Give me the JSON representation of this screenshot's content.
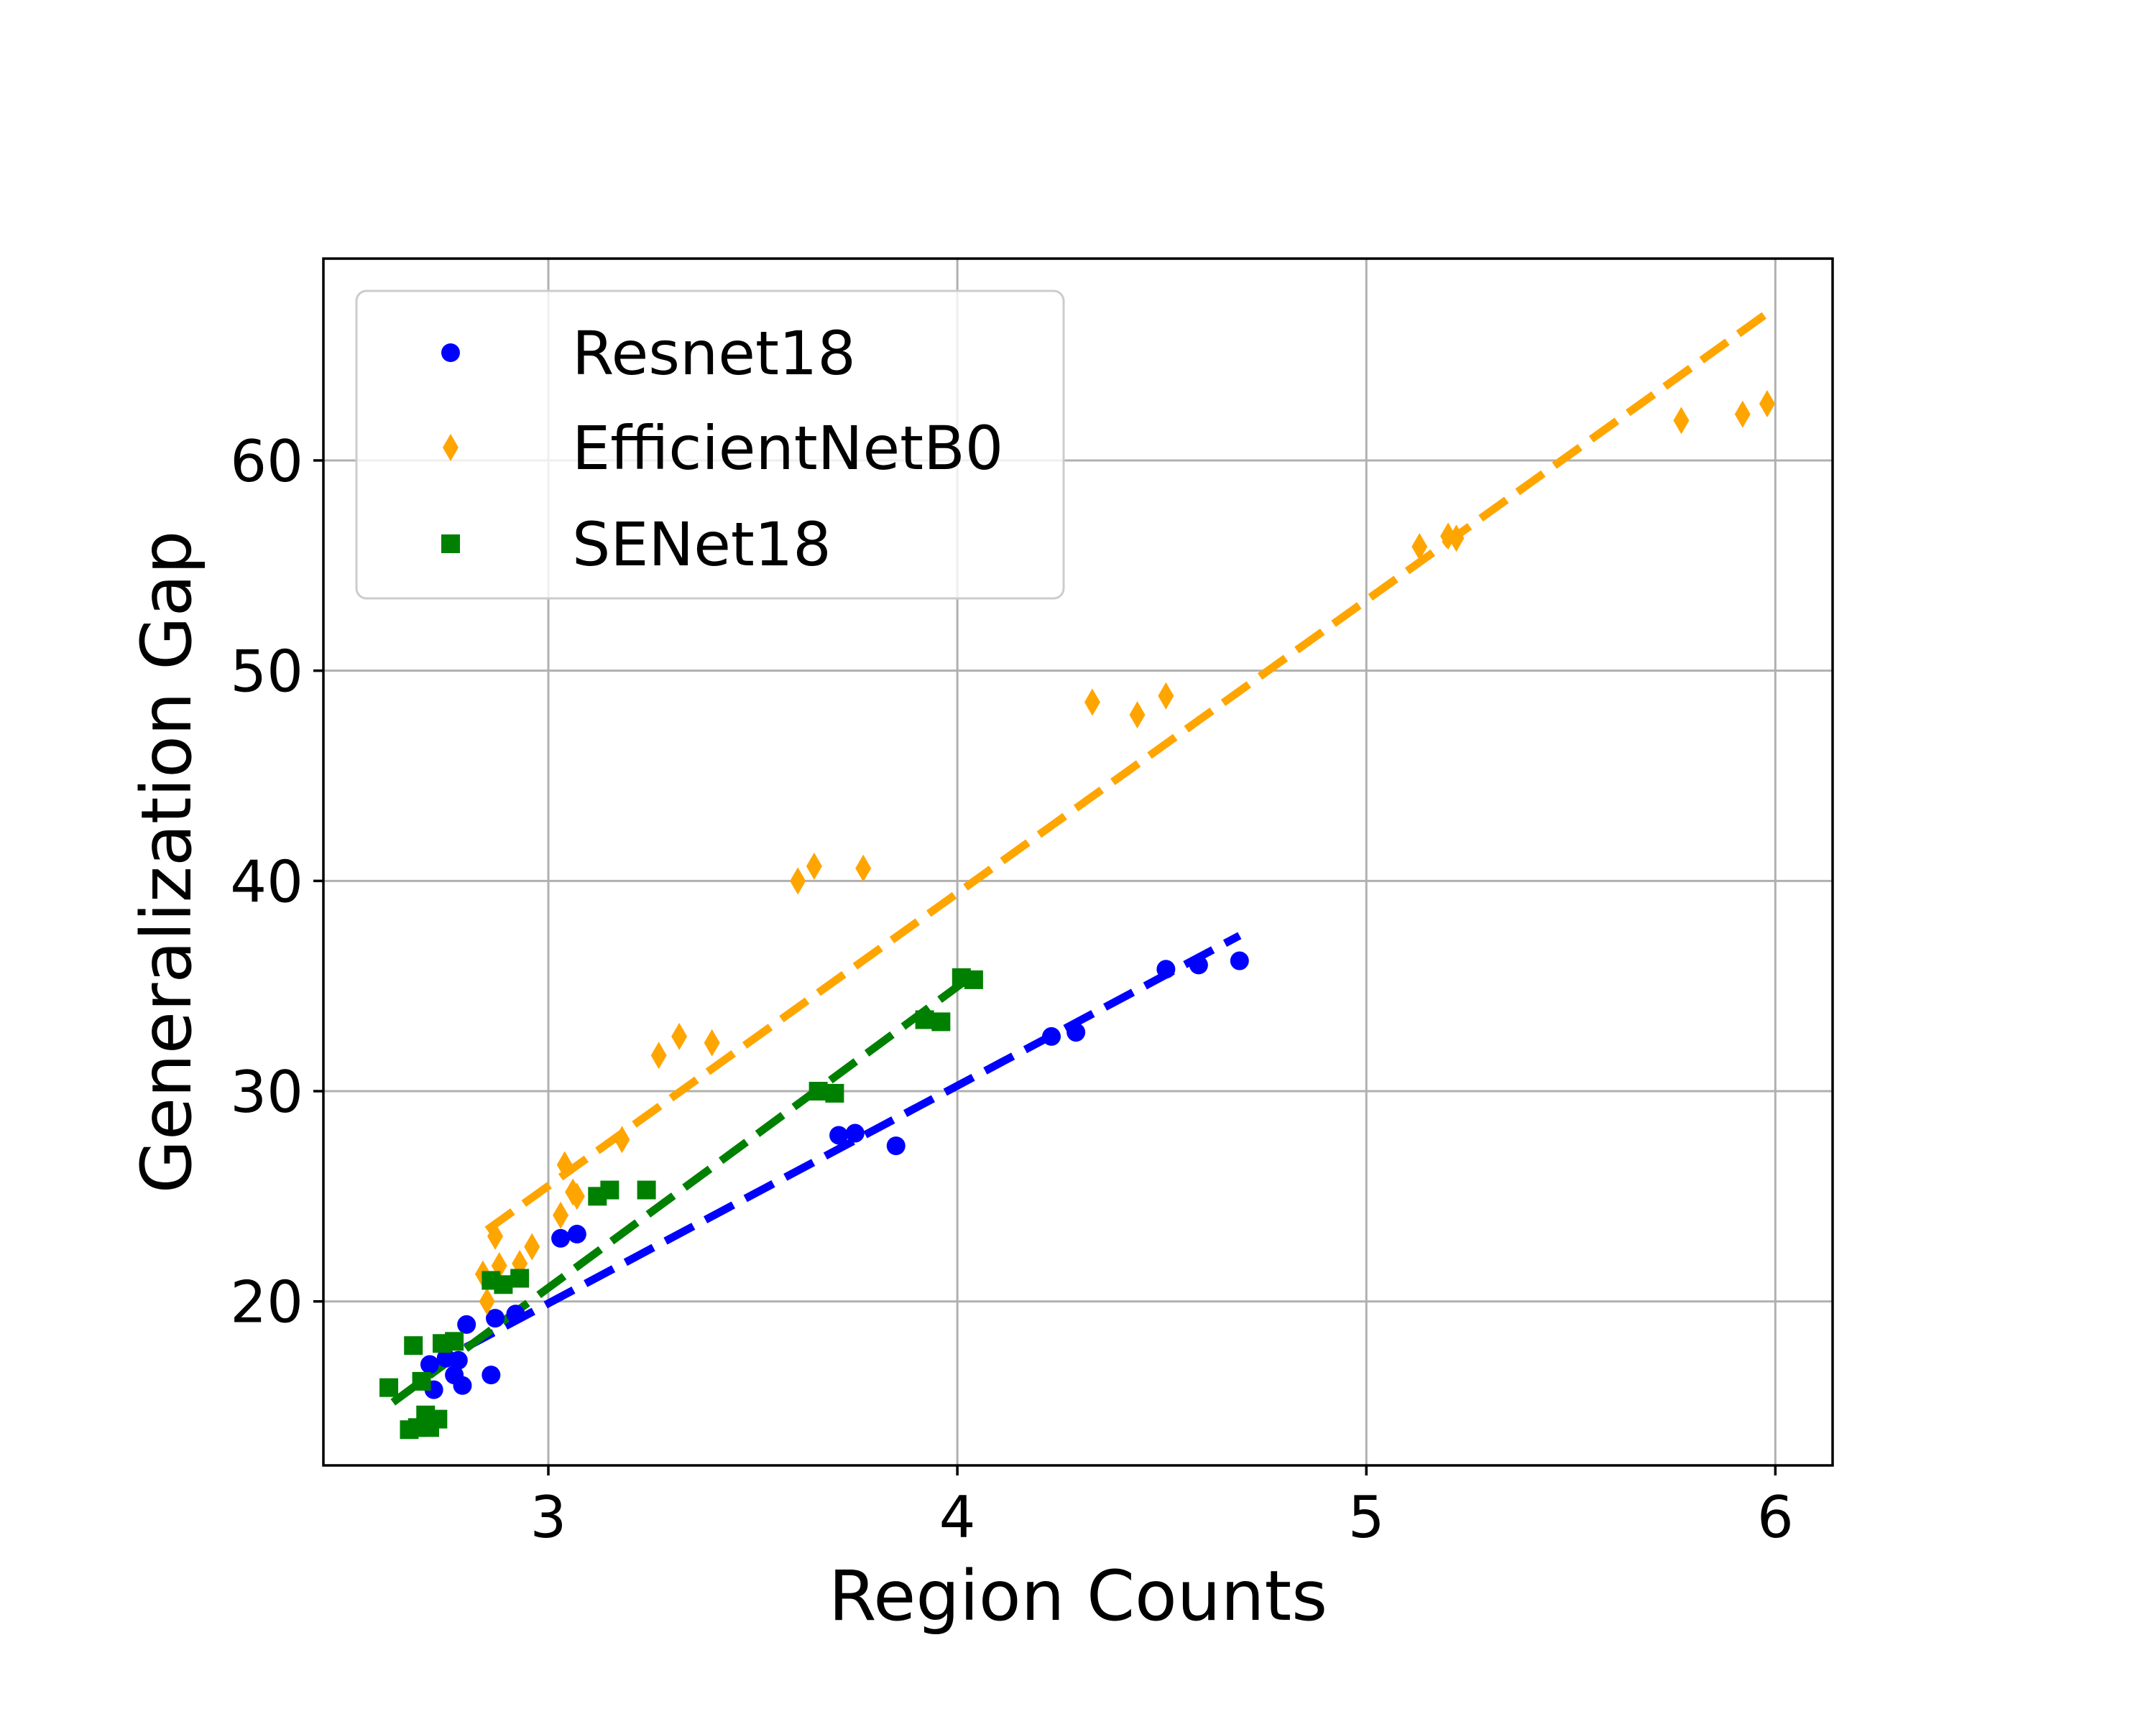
{
  "chart_data": {
    "type": "scatter",
    "xlabel": "Region Counts",
    "ylabel": "Generalization Gap",
    "xlim": [
      2.45,
      6.14
    ],
    "ylim": [
      12.2,
      69.6
    ],
    "xticks": [
      3,
      4,
      5,
      6
    ],
    "yticks": [
      20,
      30,
      40,
      50,
      60
    ],
    "grid": true,
    "legend_position": "top-left",
    "series": [
      {
        "name": "Resnet18",
        "marker": "circle",
        "color": "#0000ff",
        "points": [
          [
            2.71,
            17.0
          ],
          [
            2.72,
            15.8
          ],
          [
            2.75,
            17.3
          ],
          [
            2.77,
            16.5
          ],
          [
            2.78,
            17.2
          ],
          [
            2.79,
            16.0
          ],
          [
            2.8,
            18.9
          ],
          [
            2.86,
            16.5
          ],
          [
            2.87,
            19.2
          ],
          [
            2.92,
            19.4
          ],
          [
            3.03,
            23.0
          ],
          [
            3.07,
            23.2
          ],
          [
            3.71,
            27.9
          ],
          [
            3.75,
            28.0
          ],
          [
            3.85,
            27.4
          ],
          [
            4.23,
            32.6
          ],
          [
            4.29,
            32.8
          ],
          [
            4.51,
            35.8
          ],
          [
            4.59,
            36.0
          ],
          [
            4.69,
            36.2
          ]
        ],
        "trend": {
          "x": [
            2.7,
            4.69
          ],
          "y": [
            16.8,
            37.4
          ]
        }
      },
      {
        "name": "EfficientNetB0",
        "marker": "thin_diamond",
        "color": "#ffa500",
        "points": [
          [
            2.84,
            21.3
          ],
          [
            2.85,
            20.0
          ],
          [
            2.87,
            23.1
          ],
          [
            2.88,
            21.7
          ],
          [
            2.93,
            21.8
          ],
          [
            2.96,
            22.6
          ],
          [
            3.03,
            24.1
          ],
          [
            3.04,
            26.5
          ],
          [
            3.06,
            25.2
          ],
          [
            3.07,
            25.0
          ],
          [
            3.18,
            27.7
          ],
          [
            3.27,
            31.7
          ],
          [
            3.32,
            32.6
          ],
          [
            3.4,
            32.3
          ],
          [
            3.61,
            40.0
          ],
          [
            3.65,
            40.7
          ],
          [
            3.77,
            40.6
          ],
          [
            4.33,
            48.5
          ],
          [
            4.44,
            47.9
          ],
          [
            4.51,
            48.8
          ],
          [
            5.13,
            55.9
          ],
          [
            5.2,
            56.4
          ],
          [
            5.22,
            56.3
          ],
          [
            5.77,
            61.9
          ],
          [
            5.92,
            62.2
          ],
          [
            5.98,
            62.7
          ]
        ],
        "trend": {
          "x": [
            2.85,
            5.98
          ],
          "y": [
            23.4,
            67.0
          ]
        }
      },
      {
        "name": "SENet18",
        "marker": "square",
        "color": "#008000",
        "points": [
          [
            2.61,
            15.9
          ],
          [
            2.66,
            13.9
          ],
          [
            2.67,
            17.9
          ],
          [
            2.68,
            14.0
          ],
          [
            2.69,
            16.2
          ],
          [
            2.7,
            14.6
          ],
          [
            2.71,
            14.0
          ],
          [
            2.73,
            14.4
          ],
          [
            2.74,
            18.0
          ],
          [
            2.77,
            18.1
          ],
          [
            2.86,
            21.0
          ],
          [
            2.89,
            20.8
          ],
          [
            2.93,
            21.1
          ],
          [
            3.12,
            25.0
          ],
          [
            3.15,
            25.3
          ],
          [
            3.24,
            25.3
          ],
          [
            3.66,
            30.0
          ],
          [
            3.7,
            29.9
          ],
          [
            3.92,
            33.4
          ],
          [
            3.96,
            33.3
          ],
          [
            4.01,
            35.4
          ],
          [
            4.04,
            35.3
          ]
        ],
        "trend": {
          "x": [
            2.62,
            4.03
          ],
          "y": [
            15.2,
            35.4
          ]
        }
      }
    ]
  }
}
